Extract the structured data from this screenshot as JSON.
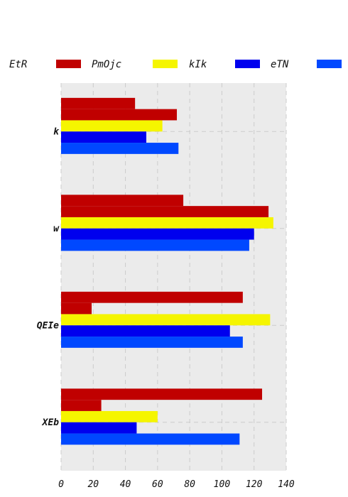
{
  "chart_data": {
    "type": "bar",
    "orientation": "horizontal",
    "title": "",
    "xlabel": "",
    "ylabel": "",
    "categories": [
      "k",
      "w",
      "QEIe",
      "XEb"
    ],
    "legend_title": "EtR",
    "legend_position": "top",
    "series": [
      {
        "name": "",
        "color": "#c00000",
        "values": [
          46,
          76,
          113,
          125
        ]
      },
      {
        "name": "PmOjc",
        "color": "#c00000",
        "values": [
          72,
          129,
          19,
          25
        ]
      },
      {
        "name": "kIk",
        "color": "#f5f500",
        "values": [
          63,
          132,
          130,
          60
        ]
      },
      {
        "name": "eTN",
        "color": "#0000ee",
        "values": [
          53,
          120,
          105,
          47
        ]
      },
      {
        "name": "",
        "color": "#0048ff",
        "values": [
          73,
          117,
          113,
          111
        ]
      }
    ],
    "xlim": [
      0,
      140
    ],
    "xticks": [
      0,
      20,
      40,
      60,
      80,
      100,
      120,
      140
    ],
    "grid": true
  }
}
